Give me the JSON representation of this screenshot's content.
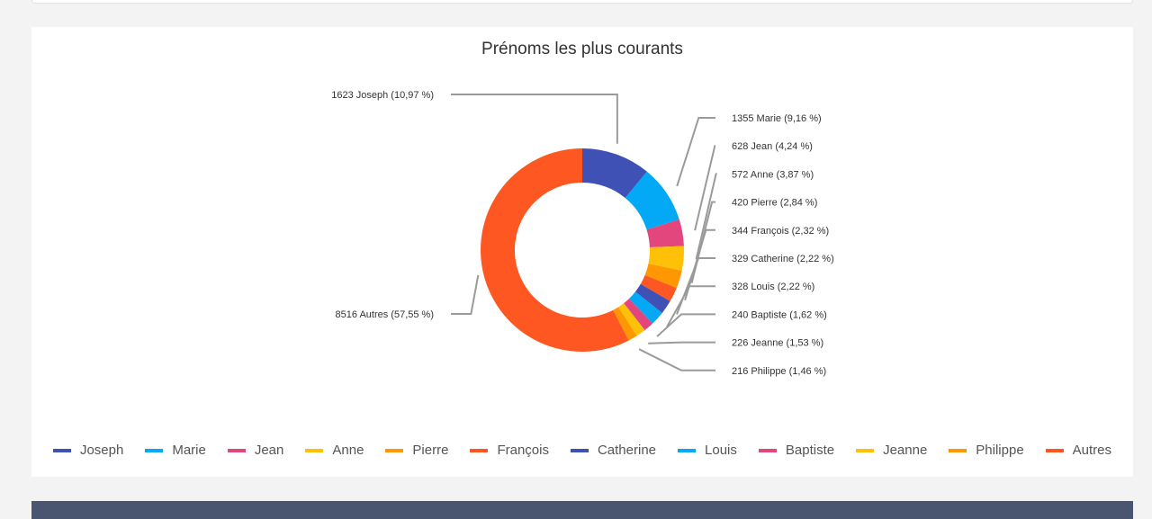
{
  "chart_data": {
    "type": "pie",
    "title": "Prénoms les plus courants",
    "donut": true,
    "legend_position": "bottom",
    "slices": [
      {
        "name": "Joseph",
        "value": 1623,
        "label": "1623 Joseph (10,97 %)",
        "color": "#3f51b5"
      },
      {
        "name": "Marie",
        "value": 1355,
        "label": "1355 Marie (9,16 %)",
        "color": "#03a9f4"
      },
      {
        "name": "Jean",
        "value": 628,
        "label": "628 Jean (4,24 %)",
        "color": "#e2467c"
      },
      {
        "name": "Anne",
        "value": 572,
        "label": "572 Anne (3,87 %)",
        "color": "#ffc107"
      },
      {
        "name": "Pierre",
        "value": 420,
        "label": "420 Pierre (2,84 %)",
        "color": "#ff9800"
      },
      {
        "name": "François",
        "value": 344,
        "label": "344 François (2,32 %)",
        "color": "#ff5722"
      },
      {
        "name": "Catherine",
        "value": 329,
        "label": "329 Catherine (2,22 %)",
        "color": "#3f51b5"
      },
      {
        "name": "Louis",
        "value": 328,
        "label": "328 Louis (2,22 %)",
        "color": "#03a9f4"
      },
      {
        "name": "Baptiste",
        "value": 240,
        "label": "240 Baptiste (1,62 %)",
        "color": "#e2467c"
      },
      {
        "name": "Jeanne",
        "value": 226,
        "label": "226 Jeanne (1,53 %)",
        "color": "#ffc107"
      },
      {
        "name": "Philippe",
        "value": 216,
        "label": "216 Philippe (1,46 %)",
        "color": "#ff9800"
      },
      {
        "name": "Autres",
        "value": 8516,
        "label": "8516 Autres (57,55 %)",
        "color": "#ff5722"
      }
    ]
  }
}
